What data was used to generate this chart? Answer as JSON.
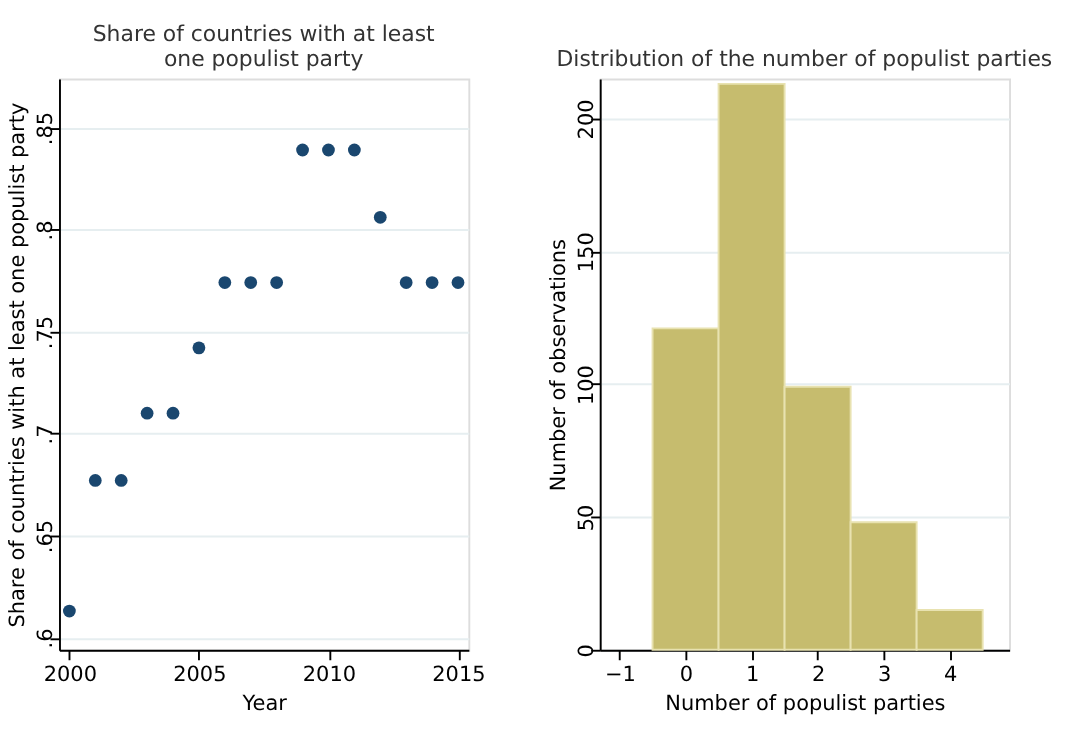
{
  "chart_data": [
    {
      "type": "scatter",
      "title": "Share of countries with at least\none populist party",
      "xlabel": "Year",
      "ylabel": "Share of countries with at least one populist party",
      "x": [
        2000,
        2001,
        2002,
        2003,
        2004,
        2005,
        2006,
        2007,
        2008,
        2009,
        2010,
        2011,
        2012,
        2013,
        2014,
        2015
      ],
      "values": [
        0.613,
        0.677,
        0.677,
        0.71,
        0.71,
        0.742,
        0.774,
        0.774,
        0.774,
        0.839,
        0.839,
        0.839,
        0.806,
        0.774,
        0.774,
        0.774
      ],
      "color": "#1a476f",
      "marker": "circle",
      "grid": "y",
      "xlim": [
        1999.6,
        2015.4
      ],
      "xticks": [
        2000,
        2005,
        2010,
        2015
      ],
      "ylim": [
        0.594,
        0.874
      ],
      "yticks": [
        {
          "value": 0.6,
          "label": ".6"
        },
        {
          "value": 0.65,
          "label": ".65"
        },
        {
          "value": 0.7,
          "label": ".7"
        },
        {
          "value": 0.75,
          "label": ".75"
        },
        {
          "value": 0.8,
          "label": ".8"
        },
        {
          "value": 0.85,
          "label": ".85"
        }
      ]
    },
    {
      "type": "histogram",
      "title": "Distribution of the number of populist parties",
      "xlabel": "Number of populist parties",
      "ylabel": "Number of observations",
      "bins": [
        -0.5,
        0.5,
        1.5,
        2.5,
        3.5,
        4.5
      ],
      "values": [
        121,
        213,
        99,
        48,
        15
      ],
      "color": "#c6bc6e",
      "grid": "y",
      "xlim": [
        -1.3,
        4.9
      ],
      "xticks": [
        {
          "value": -1,
          "label": "−1"
        },
        0,
        1,
        2,
        3,
        4
      ],
      "ylim": [
        0,
        215
      ],
      "yticks": [
        0,
        50,
        100,
        150,
        200
      ]
    }
  ]
}
